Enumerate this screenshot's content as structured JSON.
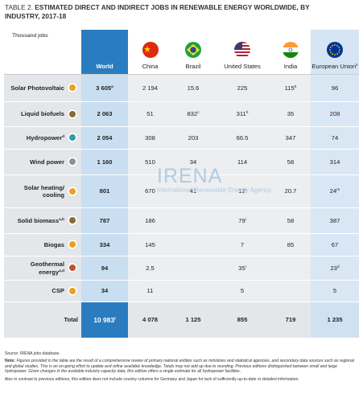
{
  "header": {
    "label": "TABLE 2.",
    "title": "ESTIMATED DIRECT AND INDIRECT JOBS IN RENEWABLE ENERGY WORLDWIDE, BY INDUSTRY, 2017-18"
  },
  "table": {
    "unit": "Thousand jobs",
    "columns": [
      {
        "name": "World"
      },
      {
        "name": "China"
      },
      {
        "name": "Brazil"
      },
      {
        "name": "United States"
      },
      {
        "name": "India"
      },
      {
        "name": "European Union",
        "sup": "k"
      }
    ],
    "rows": [
      {
        "label": "Solar Photovoltaic",
        "icon_color": "#e9a11f",
        "cells": [
          {
            "text": "3 605",
            "sup": "a"
          },
          {
            "text": "2 194"
          },
          {
            "text": "15.6"
          },
          {
            "text": "225"
          },
          {
            "text": "115",
            "sup": "b"
          },
          {
            "text": "96"
          }
        ]
      },
      {
        "label": "Liquid biofuels",
        "icon_color": "#8a6a3a",
        "cells": [
          {
            "text": "2 063"
          },
          {
            "text": "51"
          },
          {
            "text": "832",
            "sup": "c"
          },
          {
            "text": "311",
            "sup": "h"
          },
          {
            "text": "35"
          },
          {
            "text": "208"
          }
        ]
      },
      {
        "label": "Hydropower",
        "sup": "d",
        "icon_color": "#2b9fb0",
        "cells": [
          {
            "text": "2 054"
          },
          {
            "text": "308"
          },
          {
            "text": "203"
          },
          {
            "text": "66.5"
          },
          {
            "text": "347"
          },
          {
            "text": "74"
          }
        ]
      },
      {
        "label": "Wind power",
        "icon_color": "#8c9398",
        "cells": [
          {
            "text": "1 160"
          },
          {
            "text": "510"
          },
          {
            "text": "34"
          },
          {
            "text": "114"
          },
          {
            "text": "58"
          },
          {
            "text": "314"
          }
        ]
      },
      {
        "label": "Solar heating/ cooling",
        "icon_color": "#e9a11f",
        "cells": [
          {
            "text": "801"
          },
          {
            "text": "670"
          },
          {
            "text": "41"
          },
          {
            "text": "12",
            "sup": "i"
          },
          {
            "text": "20.7"
          },
          {
            "text": "24",
            "sup": "m"
          }
        ]
      },
      {
        "label": "Solid biomass",
        "sup": "a,b",
        "icon_color": "#8a6a3a",
        "cells": [
          {
            "text": "787"
          },
          {
            "text": "186"
          },
          null,
          {
            "text": "79",
            "sup": "i"
          },
          {
            "text": "58"
          },
          {
            "text": "387"
          }
        ]
      },
      {
        "label": "Biogas",
        "icon_color": "#e9a11f",
        "cells": [
          {
            "text": "334"
          },
          {
            "text": "145"
          },
          null,
          {
            "text": "7"
          },
          {
            "text": "85"
          },
          {
            "text": "67"
          }
        ]
      },
      {
        "label": "Geothermal energy",
        "sup": "a,d",
        "icon_color": "#c0522a",
        "cells": [
          {
            "text": "94"
          },
          {
            "text": "2.5"
          },
          null,
          {
            "text": "35",
            "sup": "i"
          },
          null,
          {
            "text": "23",
            "sup": "d"
          }
        ]
      },
      {
        "label": "CSP",
        "icon_color": "#e9a11f",
        "cells": [
          {
            "text": "34"
          },
          {
            "text": "11"
          },
          null,
          {
            "text": "5"
          },
          null,
          {
            "text": "5"
          }
        ]
      }
    ],
    "total": {
      "label": "Total",
      "cells": [
        {
          "text": "10 983",
          "sup": "f"
        },
        {
          "text": "4 078"
        },
        {
          "text": "1 125"
        },
        {
          "text": "855"
        },
        {
          "text": "719"
        },
        {
          "text": "1 235"
        }
      ]
    }
  },
  "watermark": {
    "name": "IRENA",
    "subtitle": "International Renewable Energy Agency"
  },
  "notes": {
    "source": "Source: IRENA jobs database.",
    "note_label": "Note:",
    "note": "Figures provided in the table are the result of a comprehensive review of primary national entities such as ministries and statistical agencies, and secondary data sources such as regional and global studies. This is an on-going effort to update and refine available knowledge. Totals may not add up due to rounding. Previous editions distinguished between small and large hydropower. Given changes in the available industry capacity data, this edition offers a single estimate for all hydropower facilities.",
    "extra": "Also in contrast to previous editions, this edition does not include country columns for Germany and Japan for lack of sufficiently up-to-date or detailed information."
  }
}
